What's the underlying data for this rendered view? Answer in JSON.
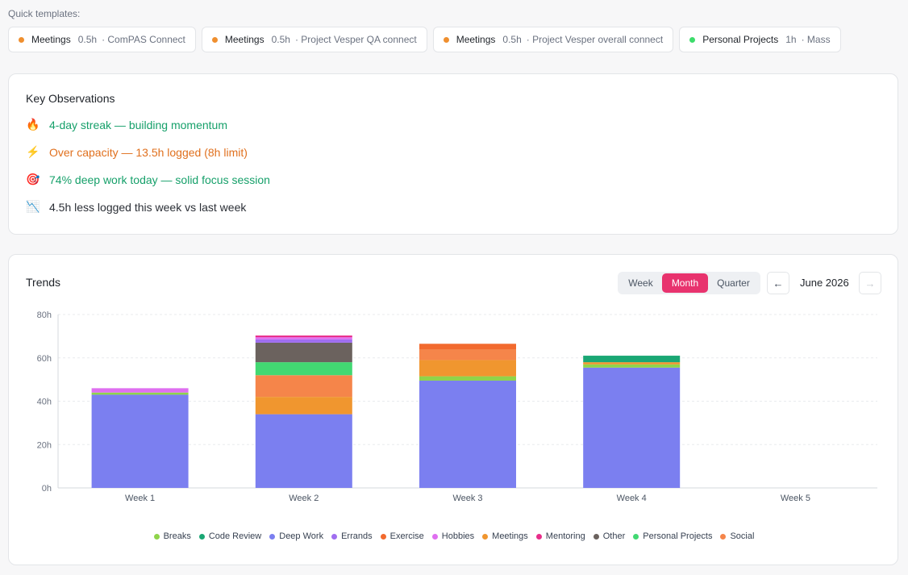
{
  "quick_templates": {
    "label": "Quick templates:",
    "items": [
      {
        "category": "Meetings",
        "duration": "0.5h",
        "project": "· ComPAS Connect",
        "color": "#ef8f2f"
      },
      {
        "category": "Meetings",
        "duration": "0.5h",
        "project": "· Project Vesper QA connect",
        "color": "#ef8f2f"
      },
      {
        "category": "Meetings",
        "duration": "0.5h",
        "project": "· Project Vesper overall connect",
        "color": "#ef8f2f"
      },
      {
        "category": "Personal Projects",
        "duration": "1h",
        "project": "· Mass",
        "color": "#3ddc6b"
      }
    ]
  },
  "observations": {
    "title": "Key Observations",
    "items": [
      {
        "icon": "fire-icon",
        "glyph": "🔥",
        "text": "4-day streak — building momentum",
        "color": "#16a06a"
      },
      {
        "icon": "lightning-icon",
        "glyph": "⚡",
        "text": "Over capacity — 13.5h logged (8h limit)",
        "color": "#e0701e"
      },
      {
        "icon": "target-icon",
        "glyph": "🎯",
        "text": "74% deep work today — solid focus session",
        "color": "#16a06a"
      },
      {
        "icon": "chart-decreasing-icon",
        "glyph": "📉",
        "text": "4.5h less logged this week vs last week",
        "color": "#2b2f36"
      }
    ]
  },
  "trends": {
    "title": "Trends",
    "period_tabs": [
      "Week",
      "Month",
      "Quarter"
    ],
    "active_tab": "Month",
    "month_label": "June 2026",
    "prev_icon": "arrow-left-icon",
    "next_icon": "arrow-right-icon"
  },
  "chart_data": {
    "type": "bar",
    "stacked": true,
    "categories": [
      "Week 1",
      "Week 2",
      "Week 3",
      "Week 4",
      "Week 5"
    ],
    "y_tick_labels": [
      "0h",
      "20h",
      "40h",
      "60h",
      "80h"
    ],
    "ylim": [
      0,
      80
    ],
    "grid": true,
    "legend_position": "bottom",
    "series": [
      {
        "name": "Deep Work",
        "color": "#7b7ff0",
        "values": [
          43,
          34,
          49.5,
          55.5,
          0
        ]
      },
      {
        "name": "Breaks",
        "color": "#8fd44a",
        "values": [
          1,
          0,
          2,
          1.5,
          0
        ]
      },
      {
        "name": "Meetings",
        "color": "#f0962f",
        "values": [
          0,
          8,
          7.5,
          1,
          0
        ]
      },
      {
        "name": "Social",
        "color": "#f5854a",
        "values": [
          0,
          10,
          5,
          0,
          0
        ]
      },
      {
        "name": "Personal Projects",
        "color": "#42d872",
        "values": [
          0,
          6,
          0,
          0,
          0
        ]
      },
      {
        "name": "Exercise",
        "color": "#f26a2e",
        "values": [
          0,
          0,
          2.5,
          0,
          0
        ]
      },
      {
        "name": "Other",
        "color": "#6b625e",
        "values": [
          0,
          9,
          0,
          0,
          0
        ]
      },
      {
        "name": "Code Review",
        "color": "#1aa774",
        "values": [
          0,
          0,
          0,
          3,
          0
        ]
      },
      {
        "name": "Errands",
        "color": "#a06ef0",
        "values": [
          0,
          1.5,
          0,
          0,
          0
        ]
      },
      {
        "name": "Hobbies",
        "color": "#df6ff0",
        "values": [
          2,
          1,
          0,
          0,
          0
        ]
      },
      {
        "name": "Mentoring",
        "color": "#e82d8a",
        "values": [
          0,
          0.8,
          0,
          0,
          0
        ]
      }
    ],
    "legend_order": [
      "Breaks",
      "Code Review",
      "Deep Work",
      "Errands",
      "Exercise",
      "Hobbies",
      "Meetings",
      "Mentoring",
      "Other",
      "Personal Projects",
      "Social"
    ]
  }
}
